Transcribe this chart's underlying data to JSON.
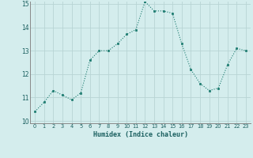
{
  "x": [
    0,
    1,
    2,
    3,
    4,
    5,
    6,
    7,
    8,
    9,
    10,
    11,
    12,
    13,
    14,
    15,
    16,
    17,
    18,
    19,
    20,
    21,
    22,
    23
  ],
  "y": [
    10.4,
    10.8,
    11.3,
    11.1,
    10.9,
    11.2,
    12.6,
    13.0,
    13.0,
    13.3,
    13.7,
    13.9,
    15.1,
    14.7,
    14.7,
    14.6,
    13.3,
    12.2,
    11.6,
    11.3,
    11.4,
    12.4,
    13.1,
    13.0
  ],
  "xlabel": "Humidex (Indice chaleur)",
  "ylim": [
    10,
    15
  ],
  "xlim": [
    -0.5,
    23.5
  ],
  "yticks": [
    10,
    11,
    12,
    13,
    14,
    15
  ],
  "xticks": [
    0,
    1,
    2,
    3,
    4,
    5,
    6,
    7,
    8,
    9,
    10,
    11,
    12,
    13,
    14,
    15,
    16,
    17,
    18,
    19,
    20,
    21,
    22,
    23
  ],
  "line_color": "#1a7a6e",
  "marker_color": "#1a7a6e",
  "bg_color": "#d4eded",
  "grid_color": "#b8d4d4",
  "fig_bg": "#d4eded"
}
